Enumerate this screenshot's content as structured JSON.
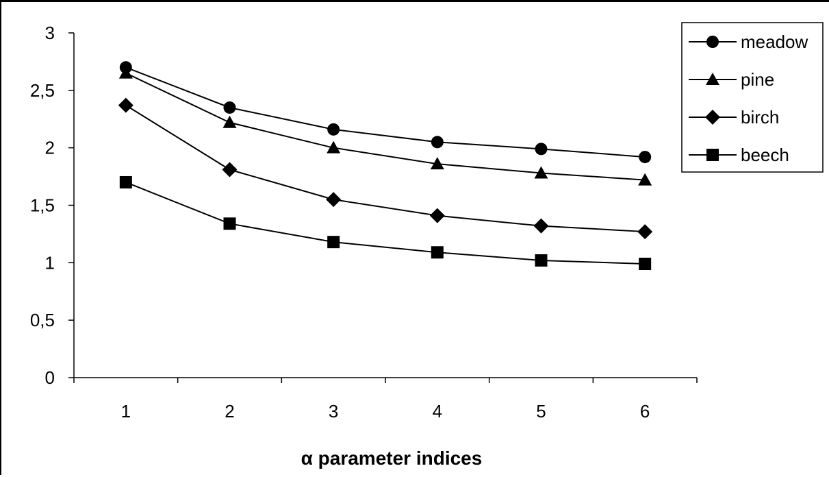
{
  "chart_data": {
    "type": "line",
    "categories": [
      "1",
      "2",
      "3",
      "4",
      "5",
      "6"
    ],
    "xlabel": "α parameter indices",
    "ylabel": "",
    "ylim": [
      0,
      3
    ],
    "yticks": [
      0,
      0.5,
      1,
      1.5,
      2,
      2.5,
      3
    ],
    "ytick_labels": [
      "0",
      "0,5",
      "1",
      "1,5",
      "2",
      "2,5",
      "3"
    ],
    "grid": false,
    "legend_position": "top-right",
    "series": [
      {
        "name": "meadow",
        "marker": "circle",
        "values": [
          2.7,
          2.35,
          2.16,
          2.05,
          1.99,
          1.92
        ]
      },
      {
        "name": "pine",
        "marker": "triangle",
        "values": [
          2.65,
          2.22,
          2.0,
          1.86,
          1.78,
          1.72
        ]
      },
      {
        "name": "birch",
        "marker": "diamond",
        "values": [
          2.37,
          1.81,
          1.55,
          1.41,
          1.32,
          1.27
        ]
      },
      {
        "name": "beech",
        "marker": "square",
        "values": [
          1.7,
          1.34,
          1.18,
          1.09,
          1.02,
          0.99
        ]
      }
    ],
    "line_color": "#000000"
  }
}
